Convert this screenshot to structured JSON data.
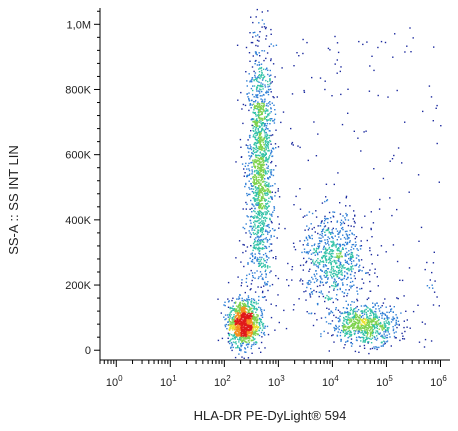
{
  "chart_data": {
    "type": "scatter",
    "title": "",
    "xlabel": "HLA-DR PE-DyLight® 594",
    "ylabel": "SS-A :: SS INT LIN",
    "x_scale": "log",
    "xlim": [
      0.5,
      1500000
    ],
    "ylim": [
      -30000,
      1050000
    ],
    "x_ticks": [
      {
        "base": "10",
        "exp": "0",
        "value": 1
      },
      {
        "base": "10",
        "exp": "1",
        "value": 10
      },
      {
        "base": "10",
        "exp": "2",
        "value": 100
      },
      {
        "base": "10",
        "exp": "3",
        "value": 1000
      },
      {
        "base": "10",
        "exp": "4",
        "value": 10000
      },
      {
        "base": "10",
        "exp": "5",
        "value": 100000
      },
      {
        "base": "10",
        "exp": "6",
        "value": 1000000
      }
    ],
    "y_ticks": [
      {
        "label": "0",
        "value": 0
      },
      {
        "label": "200K",
        "value": 200000
      },
      {
        "label": "400K",
        "value": 400000
      },
      {
        "label": "600K",
        "value": 600000
      },
      {
        "label": "800K",
        "value": 800000
      },
      {
        "label": "1,0M",
        "value": 1000000
      }
    ],
    "grid": false,
    "legend": "none",
    "colormap": [
      "#1b2a9e",
      "#2f7fd6",
      "#33c2a8",
      "#7fd34e",
      "#e9e22e",
      "#f5901e",
      "#e01a1a"
    ],
    "populations": [
      {
        "center_x": 450,
        "center_y": 550000,
        "x_spread_log10": 0.12,
        "y_spread": 190000,
        "density": "high"
      },
      {
        "center_x": 220,
        "center_y": 85000,
        "x_spread_log10": 0.14,
        "y_spread": 35000,
        "density": "very high"
      },
      {
        "center_x": 10000,
        "center_y": 280000,
        "x_spread_log10": 0.3,
        "y_spread": 70000,
        "density": "medium"
      },
      {
        "center_x": 40000,
        "center_y": 80000,
        "x_spread_log10": 0.3,
        "y_spread": 30000,
        "density": "medium"
      }
    ]
  }
}
